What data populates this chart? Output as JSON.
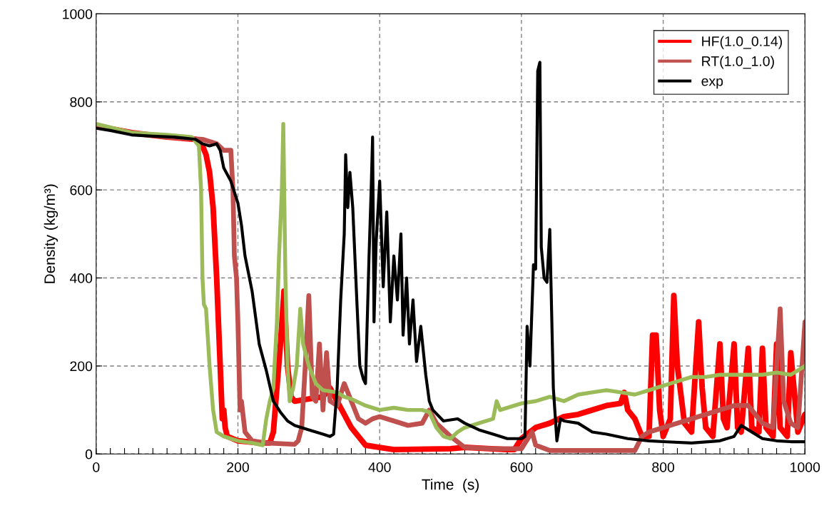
{
  "chart_data": {
    "type": "line",
    "xlabel": "Time  (s)",
    "ylabel": "Density (kg/m³)",
    "xlim": [
      0,
      1000
    ],
    "ylim": [
      0,
      1000
    ],
    "xticks": [
      0,
      {
        "value": 20,
        "label": null
      },
      {
        "value": 40,
        "label": null
      },
      {
        "value": 60,
        "label": null
      },
      {
        "value": 80,
        "label": null
      },
      {
        "value": 100,
        "label": null
      },
      {
        "value": 120,
        "label": null
      },
      {
        "value": 140,
        "label": null
      },
      {
        "value": 160,
        "label": null
      },
      {
        "value": 180,
        "label": null
      },
      200,
      {
        "value": 220,
        "label": null
      },
      {
        "value": 240,
        "label": null
      },
      {
        "value": 260,
        "label": null
      },
      {
        "value": 280,
        "label": null
      },
      {
        "value": 300,
        "label": null
      },
      {
        "value": 320,
        "label": null
      },
      {
        "value": 340,
        "label": null
      },
      {
        "value": 360,
        "label": null
      },
      {
        "value": 380,
        "label": null
      },
      400,
      {
        "value": 420,
        "label": null
      },
      {
        "value": 440,
        "label": null
      },
      {
        "value": 460,
        "label": null
      },
      {
        "value": 480,
        "label": null
      },
      {
        "value": 500,
        "label": null
      },
      {
        "value": 520,
        "label": null
      },
      {
        "value": 540,
        "label": null
      },
      {
        "value": 560,
        "label": null
      },
      {
        "value": 580,
        "label": null
      },
      600,
      {
        "value": 620,
        "label": null
      },
      {
        "value": 640,
        "label": null
      },
      {
        "value": 660,
        "label": null
      },
      {
        "value": 680,
        "label": null
      },
      {
        "value": 700,
        "label": null
      },
      {
        "value": 720,
        "label": null
      },
      {
        "value": 740,
        "label": null
      },
      {
        "value": 760,
        "label": null
      },
      {
        "value": 780,
        "label": null
      },
      800,
      {
        "value": 820,
        "label": null
      },
      {
        "value": 840,
        "label": null
      },
      {
        "value": 860,
        "label": null
      },
      {
        "value": 880,
        "label": null
      },
      {
        "value": 900,
        "label": null
      },
      {
        "value": 920,
        "label": null
      },
      {
        "value": 940,
        "label": null
      },
      {
        "value": 960,
        "label": null
      },
      {
        "value": 980,
        "label": null
      },
      1000
    ],
    "yticks": [
      0,
      200,
      400,
      600,
      800,
      1000
    ],
    "grid": true,
    "legend": "top right",
    "line_style": "solid",
    "marker": "none",
    "series": [
      {
        "name": "HF(1.0_0.14)",
        "color": "#ff0000",
        "x": [
          0,
          50,
          100,
          140,
          150,
          155,
          160,
          165,
          170,
          175,
          178,
          180,
          182,
          185,
          200,
          230,
          245,
          250,
          255,
          260,
          265,
          270,
          275,
          280,
          300,
          320,
          330,
          340,
          350,
          360,
          370,
          380,
          400,
          420,
          500,
          520,
          580,
          590,
          600,
          620,
          640,
          660,
          680,
          700,
          720,
          740,
          745,
          750,
          760,
          770,
          780,
          785,
          790,
          795,
          800,
          810,
          815,
          820,
          830,
          840,
          850,
          855,
          860,
          870,
          880,
          885,
          890,
          900,
          905,
          910,
          920,
          925,
          935,
          940,
          945,
          955,
          960,
          965,
          975,
          980,
          990,
          1000
        ],
        "values": [
          745,
          730,
          720,
          715,
          700,
          680,
          640,
          560,
          400,
          200,
          80,
          100,
          60,
          40,
          30,
          25,
          25,
          50,
          150,
          250,
          370,
          200,
          130,
          120,
          125,
          130,
          150,
          120,
          90,
          60,
          40,
          20,
          15,
          10,
          12,
          15,
          10,
          10,
          35,
          60,
          70,
          85,
          90,
          100,
          110,
          115,
          140,
          100,
          80,
          40,
          40,
          270,
          270,
          100,
          40,
          80,
          360,
          200,
          70,
          50,
          300,
          150,
          60,
          40,
          250,
          80,
          60,
          250,
          60,
          50,
          240,
          60,
          50,
          240,
          60,
          40,
          250,
          60,
          40,
          230,
          50,
          90
        ]
      },
      {
        "name": "RT(1.0_1.0)",
        "color": "#c0504d",
        "x": [
          0,
          50,
          100,
          150,
          170,
          180,
          190,
          193,
          195,
          198,
          200,
          203,
          205,
          210,
          215,
          220,
          240,
          280,
          285,
          290,
          295,
          300,
          305,
          310,
          315,
          320,
          325,
          330,
          340,
          350,
          360,
          370,
          380,
          390,
          400,
          420,
          440,
          460,
          470,
          480,
          500,
          520,
          560,
          600,
          615,
          620,
          640,
          700,
          760,
          770,
          780,
          800,
          820,
          840,
          860,
          880,
          900,
          920,
          930,
          940,
          955,
          960,
          965,
          970,
          980,
          990,
          1000
        ],
        "values": [
          745,
          730,
          720,
          715,
          705,
          690,
          690,
          600,
          450,
          400,
          300,
          100,
          120,
          50,
          40,
          30,
          25,
          22,
          30,
          60,
          200,
          360,
          130,
          120,
          250,
          100,
          230,
          120,
          110,
          160,
          120,
          80,
          70,
          80,
          85,
          75,
          65,
          70,
          100,
          70,
          40,
          15,
          12,
          12,
          50,
          20,
          8,
          8,
          8,
          40,
          50,
          60,
          70,
          80,
          90,
          100,
          110,
          110,
          90,
          70,
          60,
          200,
          330,
          120,
          70,
          60,
          300
        ]
      },
      {
        "color": "#9bbb59",
        "x": [
          0,
          50,
          100,
          135,
          145,
          148,
          150,
          152,
          155,
          160,
          165,
          170,
          180,
          200,
          220,
          235,
          240,
          245,
          250,
          255,
          258,
          262,
          264,
          267,
          270,
          273,
          278,
          283,
          288,
          292,
          300,
          310,
          320,
          340,
          350,
          360,
          380,
          400,
          420,
          440,
          460,
          470,
          480,
          490,
          500,
          510,
          520,
          540,
          560,
          565,
          570,
          600,
          620,
          640,
          660,
          680,
          700,
          720,
          740,
          760,
          780,
          800,
          820,
          840,
          860,
          880,
          900,
          920,
          940,
          960,
          980,
          1000
        ],
        "values": [
          750,
          730,
          725,
          720,
          700,
          600,
          400,
          340,
          330,
          200,
          100,
          50,
          40,
          30,
          25,
          20,
          80,
          120,
          150,
          300,
          450,
          600,
          750,
          400,
          200,
          120,
          150,
          200,
          330,
          250,
          200,
          160,
          145,
          140,
          130,
          125,
          110,
          100,
          105,
          100,
          100,
          95,
          60,
          40,
          35,
          50,
          60,
          70,
          80,
          120,
          100,
          115,
          120,
          130,
          120,
          135,
          140,
          145,
          140,
          135,
          145,
          155,
          165,
          175,
          175,
          180,
          180,
          180,
          180,
          185,
          180,
          200
        ]
      },
      {
        "name": "exp",
        "color": "#000000",
        "x": [
          0,
          20,
          50,
          80,
          110,
          140,
          150,
          160,
          170,
          175,
          180,
          190,
          200,
          205,
          210,
          220,
          230,
          240,
          250,
          260,
          270,
          280,
          300,
          320,
          330,
          335,
          340,
          345,
          350,
          352,
          355,
          358,
          362,
          368,
          372,
          377,
          380,
          385,
          388,
          390,
          392,
          395,
          400,
          405,
          410,
          415,
          420,
          425,
          430,
          433,
          438,
          442,
          447,
          452,
          458,
          465,
          470,
          475,
          490,
          510,
          520,
          540,
          560,
          580,
          600,
          605,
          608,
          612,
          617,
          620,
          623,
          626,
          628,
          632,
          636,
          640,
          645,
          650,
          655,
          660,
          680,
          700,
          720,
          750,
          780,
          800,
          840,
          880,
          900,
          910,
          920,
          940,
          960,
          980,
          1000
        ],
        "values": [
          740,
          735,
          725,
          722,
          720,
          715,
          705,
          700,
          705,
          690,
          650,
          620,
          570,
          520,
          450,
          370,
          250,
          190,
          120,
          95,
          75,
          65,
          55,
          45,
          40,
          45,
          150,
          350,
          500,
          680,
          560,
          640,
          560,
          340,
          200,
          170,
          160,
          450,
          600,
          720,
          300,
          480,
          620,
          380,
          550,
          300,
          450,
          350,
          500,
          270,
          400,
          250,
          350,
          210,
          290,
          180,
          120,
          100,
          75,
          80,
          70,
          55,
          45,
          35,
          35,
          40,
          290,
          200,
          430,
          420,
          870,
          890,
          470,
          400,
          390,
          510,
          150,
          30,
          80,
          75,
          70,
          50,
          45,
          35,
          30,
          28,
          25,
          30,
          40,
          65,
          55,
          35,
          30,
          28,
          28
        ]
      }
    ]
  }
}
